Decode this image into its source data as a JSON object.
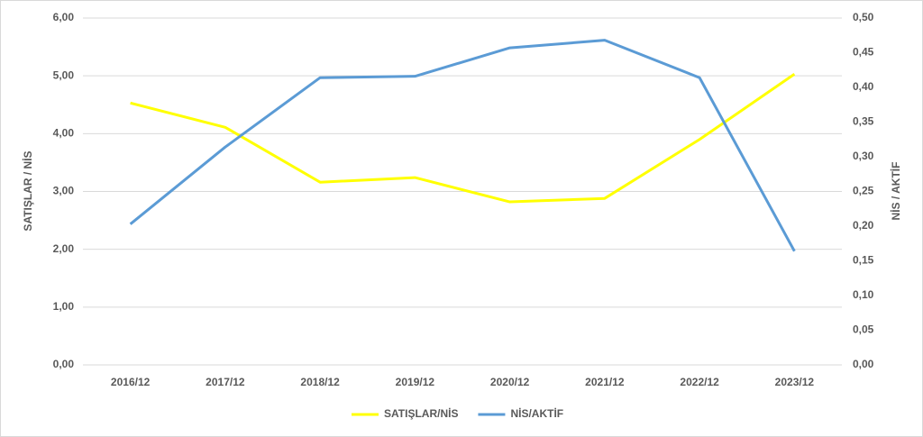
{
  "chart_data": {
    "type": "line",
    "categories": [
      "2016/12",
      "2017/12",
      "2018/12",
      "2019/12",
      "2020/12",
      "2021/12",
      "2022/12",
      "2023/12"
    ],
    "y_label": "SATIŞLAR / NİS",
    "y2_label": "NİS / AKTİF",
    "series": [
      {
        "name": "SATIŞLAR/NİS",
        "color": "#ffff00",
        "values": [
          4.53,
          4.11,
          3.16,
          3.24,
          2.82,
          2.88,
          3.9,
          5.03
        ]
      },
      {
        "name": "NİS/AKTİF",
        "color": "#5b9bd5",
        "axis": "y2",
        "values": [
          0.203,
          0.314,
          0.414,
          0.416,
          0.457,
          0.468,
          0.414,
          0.164
        ]
      }
    ],
    "ylim": [
      0,
      6
    ],
    "yticks": [
      {
        "value": 0,
        "label": "0,00"
      },
      {
        "value": 1,
        "label": "1,00"
      },
      {
        "value": 2,
        "label": "2,00"
      },
      {
        "value": 3,
        "label": "3,00"
      },
      {
        "value": 4,
        "label": "4,00"
      },
      {
        "value": 5,
        "label": "5,00"
      },
      {
        "value": 6,
        "label": "6,00"
      }
    ],
    "y2lim": [
      0,
      0.5
    ],
    "y2ticks": [
      {
        "value": 0,
        "label": "0,00"
      },
      {
        "value": 0.05,
        "label": "0,05"
      },
      {
        "value": 0.1,
        "label": "0,10"
      },
      {
        "value": 0.15,
        "label": "0,15"
      },
      {
        "value": 0.2,
        "label": "0,20"
      },
      {
        "value": 0.25,
        "label": "0,25"
      },
      {
        "value": 0.3,
        "label": "0,30"
      },
      {
        "value": 0.35,
        "label": "0,35"
      },
      {
        "value": 0.4,
        "label": "0,40"
      },
      {
        "value": 0.45,
        "label": "0,45"
      },
      {
        "value": 0.5,
        "label": "0,50"
      }
    ],
    "grid": true,
    "legend": "bottom"
  }
}
